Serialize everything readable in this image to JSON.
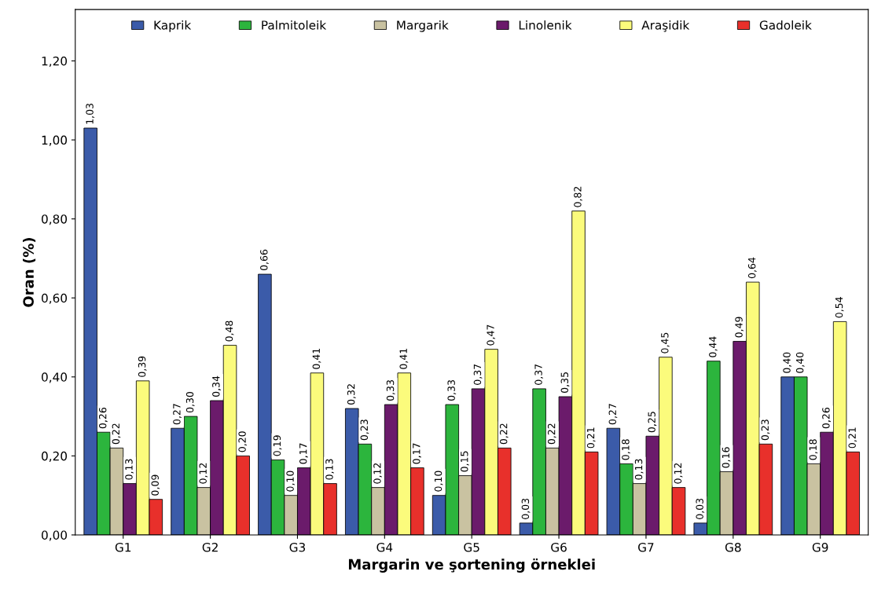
{
  "chart_data": {
    "type": "bar",
    "xlabel": "Margarin ve şortening örneklei",
    "ylabel": "Oran (%)",
    "categories": [
      "G1",
      "G2",
      "G3",
      "G4",
      "G5",
      "G6",
      "G7",
      "G8",
      "G9"
    ],
    "series": [
      {
        "name": "Kaprik",
        "color": "#3b5ba9",
        "values": [
          1.03,
          0.27,
          0.66,
          0.32,
          0.1,
          0.03,
          0.27,
          0.03,
          0.4
        ],
        "value_labels": [
          "1,03",
          "0,27",
          "0,66",
          "0,32",
          "0,10",
          "0,03",
          "0,27",
          "0,03",
          "0,40"
        ]
      },
      {
        "name": "Palmitoleik",
        "color": "#2cb53d",
        "values": [
          0.26,
          0.3,
          0.19,
          0.23,
          0.33,
          0.37,
          0.18,
          0.44,
          0.4
        ],
        "value_labels": [
          "0,26",
          "0,30",
          "0,19",
          "0,23",
          "0,33",
          "0,37",
          "0,18",
          "0,44",
          "0,40"
        ]
      },
      {
        "name": "Margarik",
        "color": "#c9c2a1",
        "values": [
          0.22,
          0.12,
          0.1,
          0.12,
          0.15,
          0.22,
          0.13,
          0.16,
          0.18
        ],
        "value_labels": [
          "0,22",
          "0,12",
          "0,10",
          "0,12",
          "0,15",
          "0,22",
          "0,13",
          "0,16",
          "0,18"
        ]
      },
      {
        "name": "Linolenik",
        "color": "#6b1b6b",
        "values": [
          0.13,
          0.34,
          0.17,
          0.33,
          0.37,
          0.35,
          0.25,
          0.49,
          0.26
        ],
        "value_labels": [
          "0,13",
          "0,34",
          "0,17",
          "0,33",
          "0,37",
          "0,35",
          "0,25",
          "0,49",
          "0,26"
        ]
      },
      {
        "name": "Araşidik",
        "color": "#fbfb7c",
        "values": [
          0.39,
          0.48,
          0.41,
          0.41,
          0.47,
          0.82,
          0.45,
          0.64,
          0.54
        ],
        "value_labels": [
          "0,39",
          "0,48",
          "0,41",
          "0,41",
          "0,47",
          "0,82",
          "0,45",
          "0,64",
          "0,54"
        ]
      },
      {
        "name": "Gadoleik",
        "color": "#e8302b",
        "values": [
          0.09,
          0.2,
          0.13,
          0.17,
          0.22,
          0.21,
          0.12,
          0.23,
          0.21
        ],
        "value_labels": [
          "0,09",
          "0,20",
          "0,13",
          "0,17",
          "0,22",
          "0,21",
          "0,12",
          "0,23",
          "0,21"
        ]
      }
    ],
    "ylim": [
      0,
      1.33
    ],
    "yticks": [
      {
        "value": 0,
        "label": "0,00"
      },
      {
        "value": 0.2,
        "label": "0,20"
      },
      {
        "value": 0.4,
        "label": "0,40"
      },
      {
        "value": 0.6,
        "label": "0,60"
      },
      {
        "value": 0.8,
        "label": "0,80"
      },
      {
        "value": 1.0,
        "label": "1,00"
      },
      {
        "value": 1.2,
        "label": "1,20"
      }
    ],
    "legend": "top",
    "grid": false
  }
}
